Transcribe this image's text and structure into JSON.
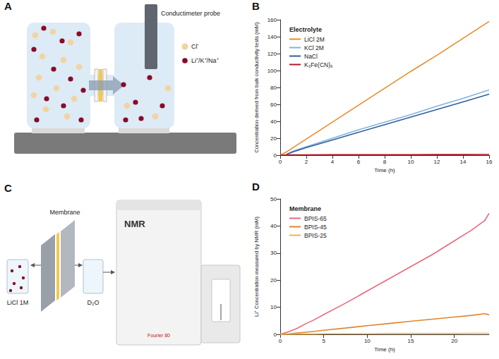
{
  "panel_labels": [
    "A",
    "B",
    "C",
    "D"
  ],
  "diagrams": {
    "A": {
      "probe_label": "Conductimeter probe",
      "ion_legend": [
        "Cl⁻",
        "Li⁺/K⁺/Na⁺"
      ]
    },
    "C": {
      "membrane_label": "Membrane",
      "feed_label": "LiCl 1M",
      "receiver_label": "D₂O",
      "instrument_label": "NMR",
      "instrument_model": "Fourier 80"
    }
  },
  "chart_data": [
    {
      "type": "line",
      "x_label": "Time (h)",
      "y_label": "Concentration derived from bulk conductivity tests (mM)",
      "legend_title": "Electrolyte",
      "legend": "upper left",
      "grid": false,
      "x": [
        0,
        0.5,
        1,
        2,
        4,
        6,
        8,
        10,
        12,
        14,
        16
      ],
      "series": [
        {
          "name": "LiCl 2M",
          "color": "#e98b2a",
          "values": [
            0,
            4,
            9,
            19,
            39,
            59,
            79,
            99,
            118,
            138,
            158
          ]
        },
        {
          "name": "KCl 2M",
          "color": "#7fb3e0",
          "values": [
            null,
            1,
            5,
            10,
            20,
            30,
            39,
            48,
            58,
            67,
            77
          ]
        },
        {
          "name": "NaCl",
          "color": "#2f5f98",
          "values": [
            null,
            1,
            4,
            9,
            18,
            27,
            36,
            45,
            54,
            63,
            72
          ]
        },
        {
          "name": "K₃Fe(CN)₆",
          "color": "#b2182b",
          "values": [
            0,
            0.3,
            0.3,
            0.4,
            0.5,
            0.5,
            0.6,
            0.6,
            0.7,
            0.7,
            0.8
          ]
        }
      ],
      "xlim": [
        0,
        16
      ],
      "xticks": [
        0,
        2,
        4,
        6,
        8,
        10,
        12,
        14,
        16
      ],
      "ylim": [
        0,
        160
      ],
      "yticks": [
        0,
        20,
        40,
        60,
        80,
        100,
        120,
        140,
        160
      ]
    },
    {
      "type": "line",
      "x_label": "Time (h)",
      "y_label": "Li⁺ Concentration measured by NMR (mM)",
      "legend_title": "Membrane",
      "legend": "upper left",
      "grid": false,
      "x": [
        0,
        1,
        2,
        3,
        4,
        5,
        7.5,
        10,
        12.5,
        15,
        17.5,
        20,
        22,
        23.5,
        24
      ],
      "series": [
        {
          "name": "BPIS-65",
          "color": "#e8697d",
          "values": [
            0,
            1,
            2.3,
            4,
            5.5,
            7.3,
            11.5,
            16,
            20.5,
            25,
            29.5,
            34.5,
            38.5,
            42,
            44.7
          ]
        },
        {
          "name": "BPIS-45",
          "color": "#e0852e",
          "values": [
            0,
            0.2,
            0.5,
            0.8,
            1.1,
            1.5,
            2.3,
            3.2,
            4,
            4.8,
            5.6,
            6.4,
            7,
            7.6,
            7.2
          ]
        },
        {
          "name": "BPIS-25",
          "color": "#f2b44a",
          "values": [
            0,
            0,
            0.1,
            0.1,
            0.1,
            0.2,
            0.2,
            0.2,
            0.3,
            0.3,
            0.3,
            0.3,
            0.4,
            0.4,
            0.4
          ]
        }
      ],
      "xlim": [
        0,
        24
      ],
      "xticks": [
        0,
        5,
        10,
        15,
        20
      ],
      "ylim": [
        0,
        50
      ],
      "yticks": [
        0,
        10,
        20,
        30,
        40,
        50
      ]
    }
  ]
}
